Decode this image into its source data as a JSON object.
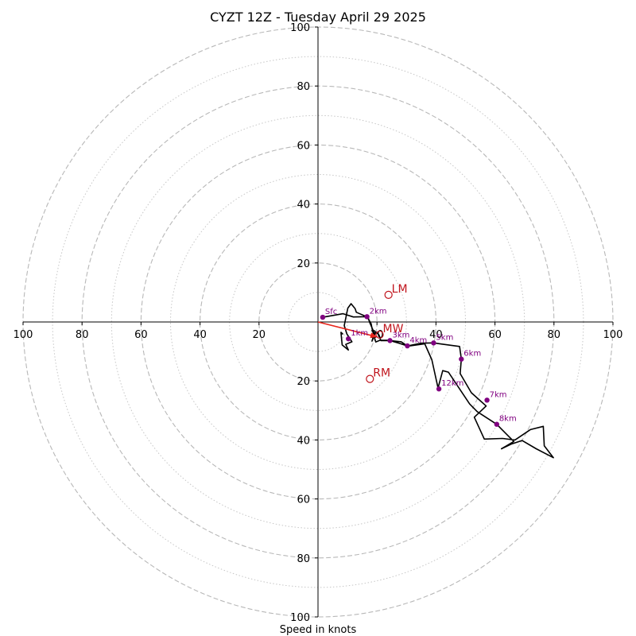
{
  "chart_data": {
    "type": "hodograph",
    "title": "CYZT 12Z - Tuesday April 29 2025",
    "xlabel": "Speed in knots",
    "xlim": [
      -100,
      100
    ],
    "ylim": [
      -100,
      100
    ],
    "ring_major": [
      20,
      40,
      60,
      80,
      100
    ],
    "ring_minor": [
      10,
      30,
      50,
      70,
      90
    ],
    "x_ticks": [
      {
        "v": -100,
        "label": "100"
      },
      {
        "v": -80,
        "label": "80"
      },
      {
        "v": -60,
        "label": "60"
      },
      {
        "v": -40,
        "label": "40"
      },
      {
        "v": -20,
        "label": "20"
      },
      {
        "v": 20,
        "label": "20"
      },
      {
        "v": 40,
        "label": "40"
      },
      {
        "v": 60,
        "label": "60"
      },
      {
        "v": 80,
        "label": "80"
      },
      {
        "v": 100,
        "label": "100"
      }
    ],
    "y_ticks": [
      {
        "v": 100,
        "label": "100"
      },
      {
        "v": 80,
        "label": "80"
      },
      {
        "v": 60,
        "label": "60"
      },
      {
        "v": 40,
        "label": "40"
      },
      {
        "v": 20,
        "label": "20"
      },
      {
        "v": -20,
        "label": "20"
      },
      {
        "v": -40,
        "label": "40"
      },
      {
        "v": -60,
        "label": "60"
      },
      {
        "v": -80,
        "label": "80"
      },
      {
        "v": -100,
        "label": "100"
      }
    ],
    "hodograph_trace": [
      [
        1.6,
        1.6
      ],
      [
        8.5,
        2.8
      ],
      [
        12,
        1.7
      ],
      [
        16.6,
        1.8
      ],
      [
        18,
        -0.6
      ],
      [
        18.5,
        -3
      ],
      [
        19.6,
        -6.8
      ],
      [
        21,
        -6.2
      ],
      [
        24,
        -6.2
      ],
      [
        27.5,
        -7.2
      ],
      [
        30.3,
        -8.1
      ],
      [
        35,
        -7.2
      ],
      [
        39.2,
        -7.1
      ],
      [
        42,
        -7.5
      ],
      [
        48,
        -8.3
      ],
      [
        48.6,
        -12.6
      ],
      [
        48.2,
        -17.5
      ],
      [
        52,
        -24
      ],
      [
        57,
        -28.5
      ],
      [
        53,
        -32.3
      ],
      [
        56.4,
        -39.7
      ],
      [
        62.5,
        -39.5
      ],
      [
        66.8,
        -40
      ],
      [
        72,
        -36.5
      ],
      [
        76.4,
        -35.4
      ],
      [
        76.7,
        -42
      ],
      [
        79.8,
        -46
      ],
      [
        74,
        -43
      ],
      [
        69.2,
        -40.2
      ],
      [
        65.5,
        -41.4
      ],
      [
        62.2,
        -43
      ],
      [
        66.4,
        -40.5
      ],
      [
        60.6,
        -34.7
      ],
      [
        54,
        -30.4
      ],
      [
        51.4,
        -27.8
      ],
      [
        44.2,
        -17
      ],
      [
        42.3,
        -16.5
      ],
      [
        40.7,
        -22.4
      ],
      [
        38.6,
        -12.8
      ],
      [
        36.2,
        -7.4
      ],
      [
        30.4,
        -8.2
      ],
      [
        28.2,
        -6.7
      ],
      [
        24.4,
        -6.3
      ],
      [
        21.3,
        -6.3
      ],
      [
        20.7,
        -4.4
      ],
      [
        19.6,
        -3.4
      ],
      [
        18.3,
        -6.5
      ],
      [
        19.1,
        -3.8
      ],
      [
        17.5,
        -0.1
      ],
      [
        17,
        1.5
      ],
      [
        16.5,
        1.8
      ],
      [
        13,
        3.3
      ],
      [
        12.6,
        4.5
      ],
      [
        11.2,
        6.2
      ],
      [
        10.1,
        4.7
      ],
      [
        8.9,
        -1.2
      ],
      [
        9.8,
        -4.1
      ],
      [
        11.5,
        -6.7
      ],
      [
        9.4,
        -7.6
      ],
      [
        10.3,
        -9.5
      ],
      [
        8.2,
        -7.8
      ],
      [
        7.8,
        -3.5
      ],
      [
        8.5,
        -4.2
      ]
    ],
    "levels": [
      {
        "label": "Sfc",
        "x": 1.6,
        "y": 1.6
      },
      {
        "label": "1km",
        "x": 10.3,
        "y": -5.7
      },
      {
        "label": "2km",
        "x": 16.6,
        "y": 1.8
      },
      {
        "label": "3km",
        "x": 24.4,
        "y": -6.3
      },
      {
        "label": "4km",
        "x": 30.3,
        "y": -8.1
      },
      {
        "label": "5km",
        "x": 39.2,
        "y": -7.1
      },
      {
        "label": "6km",
        "x": 48.6,
        "y": -12.6
      },
      {
        "label": "7km",
        "x": 57.3,
        "y": -26.5
      },
      {
        "label": "8km",
        "x": 60.6,
        "y": -34.7
      },
      {
        "label": "12km",
        "x": 41,
        "y": -22.7
      }
    ],
    "storm_motion": [
      {
        "label": "LM",
        "x": 23.9,
        "y": 9.2
      },
      {
        "label": "MW",
        "x": 20.9,
        "y": -4.3
      },
      {
        "label": "RM",
        "x": 17.6,
        "y": -19.3
      }
    ],
    "arrow": {
      "from": [
        0,
        0
      ],
      "to": [
        20.2,
        -5.1
      ]
    },
    "colors": {
      "trace": "#000000",
      "level_marker": "#800080",
      "motion": "#c0141c",
      "arrow": "#e8241a",
      "grid": "#b8b8b8",
      "axis": "#000000"
    }
  }
}
